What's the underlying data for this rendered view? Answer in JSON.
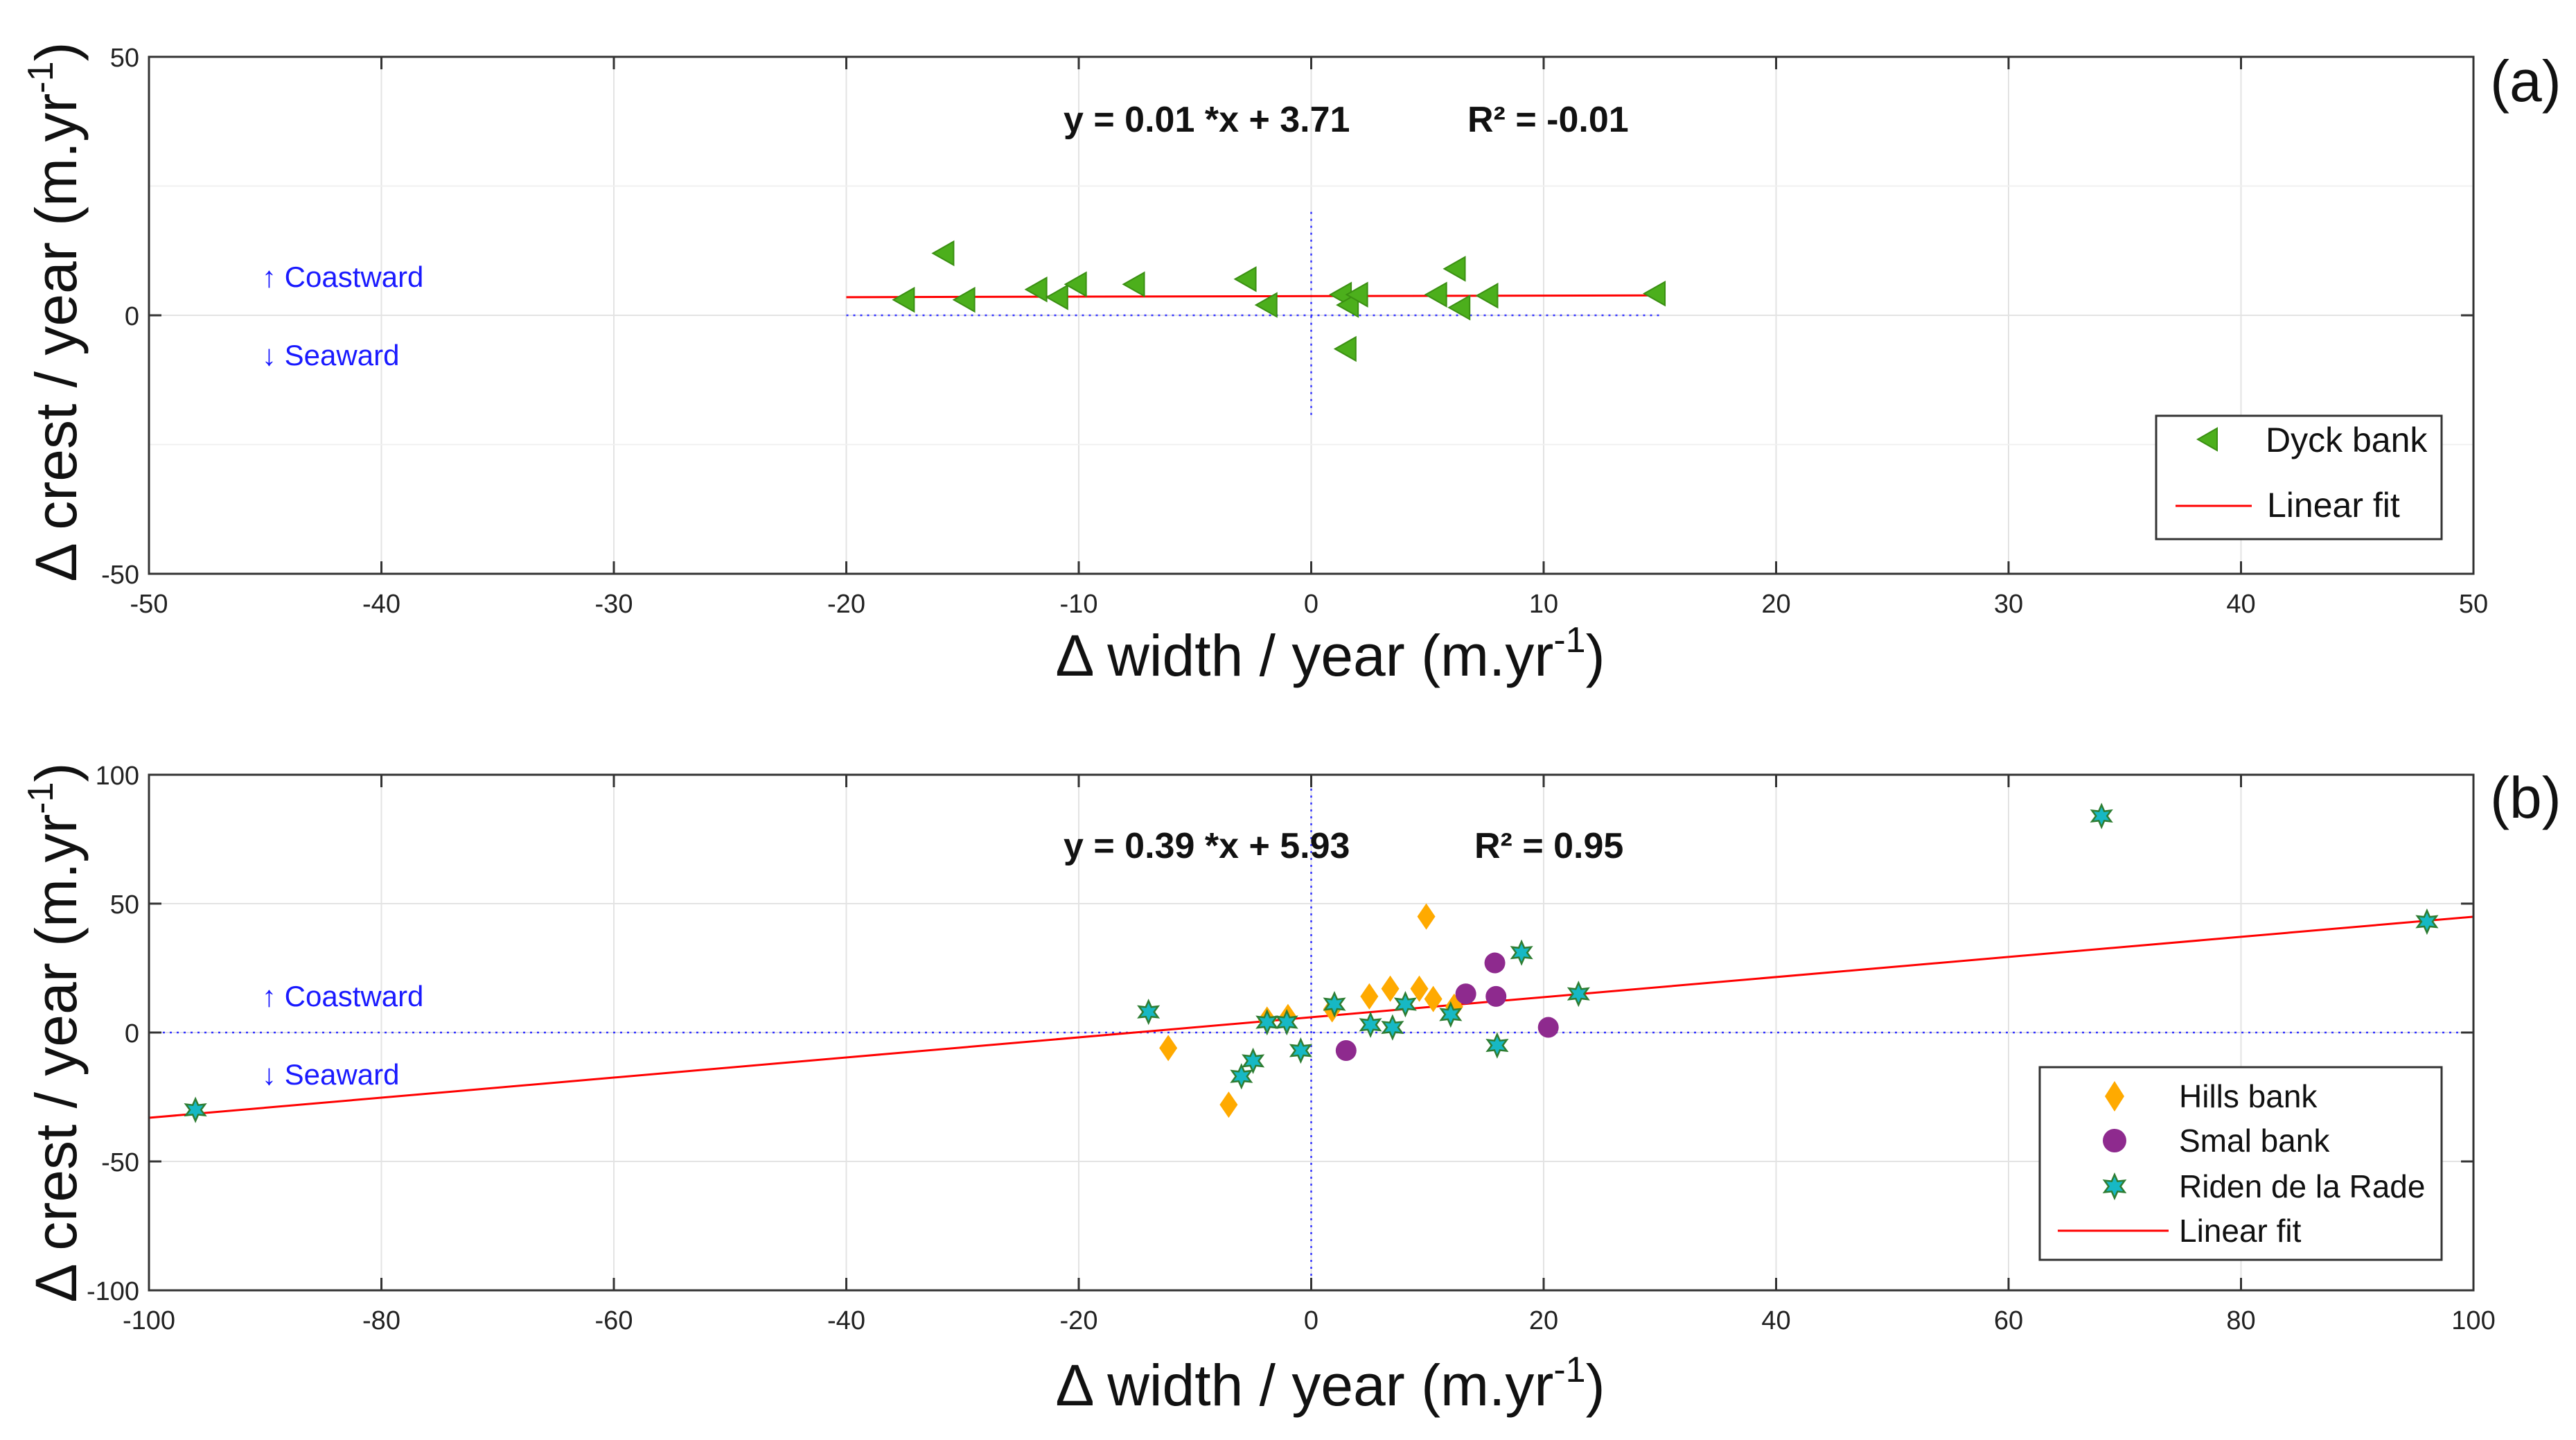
{
  "chart_data": [
    {
      "panel": "(a)",
      "type": "scatter",
      "xlabel_main": "Δ width / year (m.yr",
      "xlabel_sup": "-1",
      "xlabel_end": ")",
      "ylabel_main": "Δ crest / year (m.yr",
      "ylabel_sup": "-1",
      "ylabel_end": ")",
      "xlim": [
        -50,
        50
      ],
      "ylim": [
        -50,
        50
      ],
      "xticks": [
        -50,
        -40,
        -30,
        -20,
        -10,
        0,
        10,
        20,
        30,
        40,
        50
      ],
      "yticks": [
        -50,
        0,
        50
      ],
      "grid": true,
      "equation": "y = 0.01 *x + 3.71",
      "r2": "R² = -0.01",
      "coastward": "↑ Coastward",
      "seaward": "↓ Seaward",
      "legend_position": "bottom-right",
      "series": [
        {
          "name": "Dyck bank",
          "marker": "triangle-left",
          "color": "#4caf1c",
          "points": [
            [
              -17.5,
              3
            ],
            [
              -15.8,
              12
            ],
            [
              -14.9,
              3
            ],
            [
              -11.8,
              5
            ],
            [
              -10.9,
              3.5
            ],
            [
              -10.1,
              6
            ],
            [
              -7.6,
              6
            ],
            [
              -2.8,
              7
            ],
            [
              -1.9,
              2
            ],
            [
              1.3,
              4
            ],
            [
              1.6,
              2
            ],
            [
              1.5,
              -6.5
            ],
            [
              2.0,
              4
            ],
            [
              5.4,
              4
            ],
            [
              6.2,
              9
            ],
            [
              6.4,
              1.5
            ],
            [
              7.6,
              3.8
            ],
            [
              14.8,
              4.2
            ]
          ]
        },
        {
          "name": "Linear fit",
          "type": "line",
          "color": "#ff0000",
          "x_range": [
            -20,
            15
          ],
          "slope": 0.01,
          "intercept": 3.71
        }
      ]
    },
    {
      "panel": "(b)",
      "type": "scatter",
      "xlabel_main": "Δ width / year (m.yr",
      "xlabel_sup": "-1",
      "xlabel_end": ")",
      "ylabel_main": "Δ crest / year (m.yr",
      "ylabel_sup": "-1",
      "ylabel_end": ")",
      "xlim": [
        -100,
        100
      ],
      "ylim": [
        -100,
        100
      ],
      "xticks": [
        -100,
        -80,
        -60,
        -40,
        -20,
        0,
        20,
        40,
        60,
        80,
        100
      ],
      "yticks": [
        -100,
        -50,
        0,
        50,
        100
      ],
      "grid": true,
      "equation": "y = 0.39 *x + 5.93",
      "r2": "R² = 0.95",
      "coastward": "↑ Coastward",
      "seaward": "↓ Seaward",
      "legend_position": "bottom-right",
      "series": [
        {
          "name": "Hills bank",
          "marker": "diamond",
          "color": "#ffaa00",
          "points": [
            [
              -12.3,
              -6
            ],
            [
              -7.1,
              -28
            ],
            [
              -3.8,
              5
            ],
            [
              -2.0,
              6
            ],
            [
              1.8,
              9
            ],
            [
              5.0,
              14
            ],
            [
              6.8,
              17
            ],
            [
              9.3,
              17
            ],
            [
              9.9,
              45
            ],
            [
              10.5,
              13
            ],
            [
              12.3,
              10
            ]
          ]
        },
        {
          "name": "Smal bank",
          "marker": "circle",
          "color": "#8e2a8e",
          "points": [
            [
              3.0,
              -7
            ],
            [
              13.3,
              15
            ],
            [
              15.8,
              27
            ],
            [
              15.9,
              14
            ],
            [
              20.4,
              2
            ]
          ]
        },
        {
          "name": "Riden de la Rade",
          "marker": "hexagram",
          "color": "#17b8c4",
          "points": [
            [
              -96.0,
              -30
            ],
            [
              -14.0,
              8
            ],
            [
              -6.0,
              -17
            ],
            [
              -5.0,
              -11
            ],
            [
              -3.8,
              4
            ],
            [
              -2.1,
              4
            ],
            [
              -0.9,
              -7
            ],
            [
              2.0,
              11
            ],
            [
              5.1,
              3
            ],
            [
              7.0,
              2
            ],
            [
              8.1,
              11
            ],
            [
              12.0,
              7
            ],
            [
              16.0,
              -5
            ],
            [
              18.1,
              31
            ],
            [
              23.0,
              15
            ],
            [
              68.0,
              84
            ],
            [
              96.0,
              43
            ]
          ]
        },
        {
          "name": "Linear fit",
          "type": "line",
          "color": "#ff0000",
          "x_range": [
            -100,
            100
          ],
          "slope": 0.39,
          "intercept": 5.93
        }
      ]
    }
  ]
}
